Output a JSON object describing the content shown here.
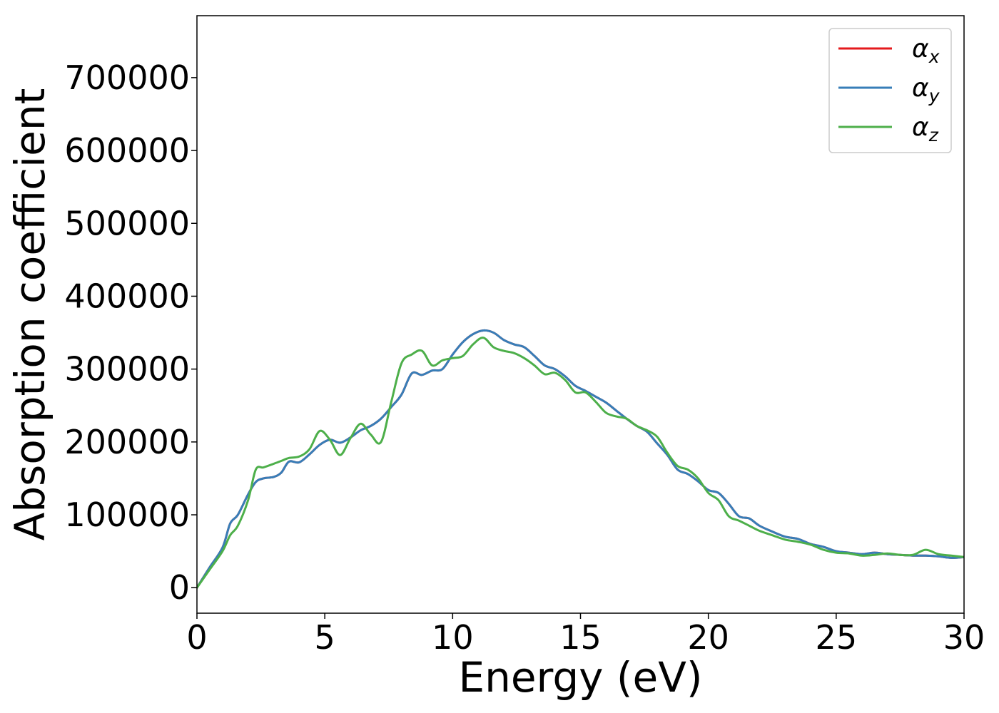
{
  "chart_data": {
    "type": "line",
    "title": "",
    "xlabel": "Energy (eV)",
    "ylabel": "Absorption coefficient",
    "xlim": [
      0,
      30
    ],
    "ylim": [
      -35000,
      785000
    ],
    "xticks": [
      0,
      5,
      10,
      15,
      20,
      25,
      30
    ],
    "yticks": [
      0,
      100000,
      200000,
      300000,
      400000,
      500000,
      600000,
      700000
    ],
    "xtick_labels": [
      "0",
      "5",
      "10",
      "15",
      "20",
      "25",
      "30"
    ],
    "ytick_labels": [
      "0",
      "100000",
      "200000",
      "300000",
      "400000",
      "500000",
      "600000",
      "700000"
    ],
    "grid": false,
    "legend_position": "top-right",
    "series": [
      {
        "name": "αx",
        "symbol": "α",
        "subscript": "x",
        "color": "#e41a1c",
        "x": [
          0,
          0.5,
          1,
          1.3,
          1.6,
          2,
          2.3,
          2.6,
          3,
          3.3,
          3.6,
          4,
          4.4,
          4.8,
          5.2,
          5.6,
          6,
          6.4,
          6.8,
          7.2,
          7.6,
          8,
          8.4,
          8.8,
          9.2,
          9.6,
          10,
          10.4,
          10.8,
          11.2,
          11.6,
          12,
          12.4,
          12.8,
          13.2,
          13.6,
          14,
          14.4,
          14.8,
          15.2,
          15.6,
          16,
          16.4,
          16.8,
          17.2,
          17.6,
          18,
          18.4,
          18.8,
          19.2,
          19.6,
          20,
          20.4,
          20.8,
          21.2,
          21.6,
          22,
          22.5,
          23,
          23.5,
          24,
          24.5,
          25,
          25.5,
          26,
          26.5,
          27,
          27.5,
          28,
          28.5,
          29,
          29.5,
          30
        ],
        "y": [
          0,
          28000,
          55000,
          88000,
          100000,
          128000,
          145000,
          150000,
          152000,
          158000,
          173000,
          172000,
          183000,
          196000,
          203000,
          199000,
          206000,
          216000,
          222000,
          232000,
          248000,
          265000,
          294000,
          292000,
          298000,
          300000,
          320000,
          337000,
          348000,
          353000,
          350000,
          340000,
          334000,
          330000,
          318000,
          305000,
          300000,
          290000,
          277000,
          270000,
          262000,
          254000,
          243000,
          232000,
          222000,
          214000,
          198000,
          182000,
          162000,
          156000,
          146000,
          134000,
          130000,
          115000,
          98000,
          95000,
          85000,
          77000,
          70000,
          67000,
          60000,
          56000,
          50000,
          48000,
          46000,
          48000,
          46000,
          45000,
          44000,
          44000,
          43000,
          41000,
          42000
        ]
      },
      {
        "name": "αy",
        "symbol": "α",
        "subscript": "y",
        "color": "#377eb8",
        "x": [
          0,
          0.5,
          1,
          1.3,
          1.6,
          2,
          2.3,
          2.6,
          3,
          3.3,
          3.6,
          4,
          4.4,
          4.8,
          5.2,
          5.6,
          6,
          6.4,
          6.8,
          7.2,
          7.6,
          8,
          8.4,
          8.8,
          9.2,
          9.6,
          10,
          10.4,
          10.8,
          11.2,
          11.6,
          12,
          12.4,
          12.8,
          13.2,
          13.6,
          14,
          14.4,
          14.8,
          15.2,
          15.6,
          16,
          16.4,
          16.8,
          17.2,
          17.6,
          18,
          18.4,
          18.8,
          19.2,
          19.6,
          20,
          20.4,
          20.8,
          21.2,
          21.6,
          22,
          22.5,
          23,
          23.5,
          24,
          24.5,
          25,
          25.5,
          26,
          26.5,
          27,
          27.5,
          28,
          28.5,
          29,
          29.5,
          30
        ],
        "y": [
          0,
          28000,
          55000,
          88000,
          100000,
          128000,
          145000,
          150000,
          152000,
          158000,
          173000,
          172000,
          183000,
          196000,
          203000,
          199000,
          206000,
          216000,
          222000,
          232000,
          248000,
          265000,
          294000,
          292000,
          298000,
          300000,
          320000,
          337000,
          348000,
          353000,
          350000,
          340000,
          334000,
          330000,
          318000,
          305000,
          300000,
          290000,
          277000,
          270000,
          262000,
          254000,
          243000,
          232000,
          222000,
          214000,
          198000,
          182000,
          162000,
          156000,
          146000,
          134000,
          130000,
          115000,
          98000,
          95000,
          85000,
          77000,
          70000,
          67000,
          60000,
          56000,
          50000,
          48000,
          46000,
          48000,
          46000,
          45000,
          44000,
          44000,
          43000,
          41000,
          42000
        ]
      },
      {
        "name": "αz",
        "symbol": "α",
        "subscript": "z",
        "color": "#4daf4a",
        "x": [
          0,
          0.5,
          1,
          1.3,
          1.6,
          2,
          2.3,
          2.6,
          3,
          3.3,
          3.6,
          4,
          4.4,
          4.8,
          5.2,
          5.6,
          6,
          6.4,
          6.8,
          7.2,
          7.6,
          8,
          8.4,
          8.8,
          9.2,
          9.6,
          10,
          10.4,
          10.8,
          11.2,
          11.6,
          12,
          12.4,
          12.8,
          13.2,
          13.6,
          14,
          14.4,
          14.8,
          15.2,
          15.6,
          16,
          16.4,
          16.8,
          17.2,
          17.6,
          18,
          18.4,
          18.8,
          19.2,
          19.6,
          20,
          20.4,
          20.8,
          21.2,
          21.6,
          22,
          22.5,
          23,
          23.5,
          24,
          24.5,
          25,
          25.5,
          26,
          26.5,
          27,
          27.5,
          28,
          28.5,
          29,
          29.5,
          30
        ],
        "y": [
          0,
          25000,
          50000,
          72000,
          85000,
          120000,
          162000,
          165000,
          170000,
          174000,
          178000,
          180000,
          190000,
          215000,
          203000,
          182000,
          205000,
          225000,
          210000,
          200000,
          255000,
          308000,
          320000,
          325000,
          305000,
          312000,
          315000,
          318000,
          334000,
          343000,
          330000,
          325000,
          322000,
          315000,
          305000,
          293000,
          295000,
          285000,
          268000,
          268000,
          255000,
          240000,
          235000,
          232000,
          222000,
          216000,
          207000,
          185000,
          167000,
          162000,
          150000,
          130000,
          120000,
          98000,
          92000,
          85000,
          78000,
          72000,
          66000,
          63000,
          59000,
          52000,
          48000,
          47000,
          44000,
          45000,
          47000,
          45000,
          45000,
          52000,
          46000,
          44000,
          42000
        ]
      }
    ]
  }
}
